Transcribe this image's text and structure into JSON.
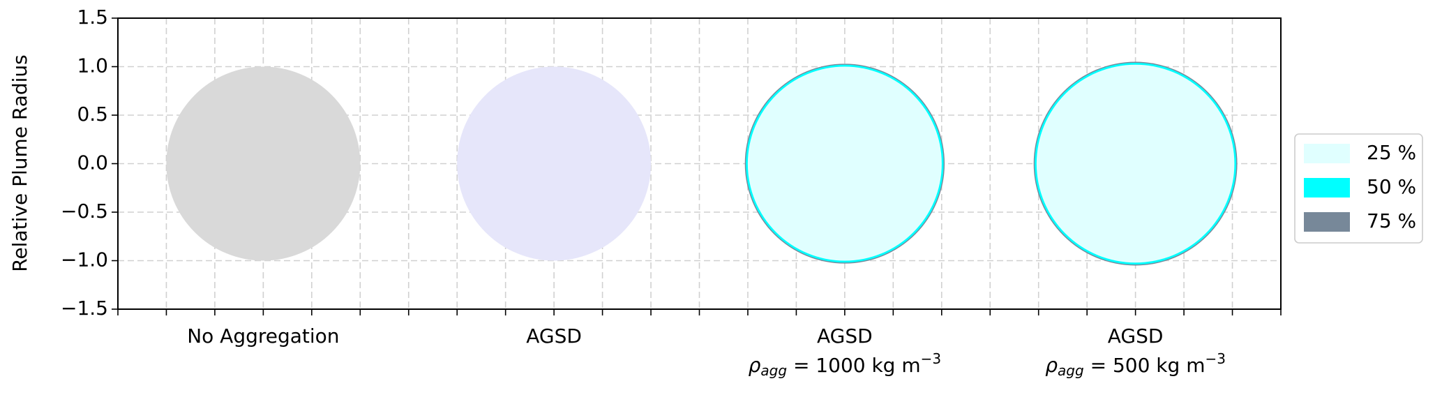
{
  "chart_data": {
    "type": "circle",
    "y_label": "Relative Plume Radius",
    "x": [
      0,
      3,
      6,
      9
    ],
    "categories": [
      {
        "line1": "No Aggregation"
      },
      {
        "line1": "AGSD"
      },
      {
        "line1": "AGSD",
        "symbol": "ρ",
        "subscript": "agg",
        "text": " = 1000 kg m",
        "superscript": "−3"
      },
      {
        "line1": "AGSD",
        "symbol": "ρ",
        "subscript": "agg",
        "text": " = 500 kg m",
        "superscript": "−3"
      }
    ],
    "baseline": {
      "values": [
        1.0,
        1.0,
        null,
        null
      ],
      "colors": [
        "#d9d9d9",
        "#e6e6fa",
        null,
        null
      ]
    },
    "series": [
      {
        "name": "75 %",
        "color": "#778899",
        "values": [
          null,
          null,
          1.03,
          1.05
        ]
      },
      {
        "name": "50 %",
        "color": "#00ffff",
        "values": [
          null,
          null,
          1.02,
          1.04
        ]
      },
      {
        "name": "25 %",
        "color": "#e0ffff",
        "values": [
          null,
          null,
          1.0,
          1.02
        ]
      }
    ],
    "legend_order": [
      2,
      1,
      0
    ],
    "xlim": [
      -1.5,
      10.5
    ],
    "xticks": [
      -1.5,
      -1,
      -0.5,
      0,
      0.5,
      1,
      1.5,
      2,
      2.5,
      3,
      3.5,
      4,
      4.5,
      5,
      5.5,
      6,
      6.5,
      7,
      7.5,
      8,
      8.5,
      9,
      9.5,
      10,
      10.5
    ],
    "ylim": [
      -1.5,
      1.5
    ],
    "yticks": [
      {
        "value": -1.5,
        "label": "−1.5"
      },
      {
        "value": -1.0,
        "label": "−1.0"
      },
      {
        "value": -0.5,
        "label": "−0.5"
      },
      {
        "value": 0,
        "label": "0.0"
      },
      {
        "value": 0.5,
        "label": "0.5"
      },
      {
        "value": 1.0,
        "label": "1.0"
      },
      {
        "value": 1.5,
        "label": "1.5"
      }
    ],
    "grid": true,
    "legend": "right"
  }
}
